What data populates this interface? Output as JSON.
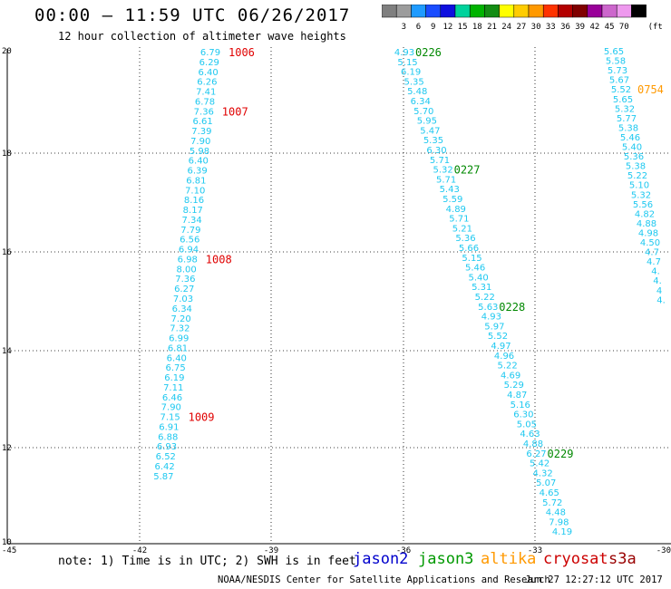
{
  "header": {
    "title": "00:00 – 11:59 UTC 06/26/2017",
    "subtitle": "12 hour collection of altimeter wave heights"
  },
  "color_scale": {
    "unit": "(ft)",
    "swatches": [
      {
        "label": "",
        "color": "#7f7f7f"
      },
      {
        "label": "3",
        "color": "#9c9c9c"
      },
      {
        "label": "6",
        "color": "#1f9bff"
      },
      {
        "label": "9",
        "color": "#1a4dff"
      },
      {
        "label": "12",
        "color": "#0f10df"
      },
      {
        "label": "15",
        "color": "#00d29c"
      },
      {
        "label": "18",
        "color": "#00b300"
      },
      {
        "label": "21",
        "color": "#138c13"
      },
      {
        "label": "24",
        "color": "#ffff00"
      },
      {
        "label": "27",
        "color": "#ffcc00"
      },
      {
        "label": "30",
        "color": "#ff9900"
      },
      {
        "label": "33",
        "color": "#ff3300"
      },
      {
        "label": "36",
        "color": "#b30000"
      },
      {
        "label": "39",
        "color": "#800000"
      },
      {
        "label": "42",
        "color": "#990099"
      },
      {
        "label": "45",
        "color": "#cc66cc"
      },
      {
        "label": "70",
        "color": "#ee99ee"
      },
      {
        "label": "",
        "color": "#000000"
      }
    ]
  },
  "axes": {
    "x_ticks": [
      "-45",
      "-42",
      "-39",
      "-36",
      "-33",
      "-30"
    ],
    "y_ticks": [
      "20",
      "18",
      "16",
      "14",
      "12",
      "10"
    ]
  },
  "tracks": [
    {
      "values": [
        "6.79",
        "6.29",
        "6.40",
        "6.26",
        "7.41",
        "6.78",
        "7.36",
        "6.61",
        "7.39",
        "7.90",
        "5.98",
        "6.40",
        "6.39",
        "6.81",
        "7.10",
        "8.16",
        "8.17",
        "7.34",
        "7.79",
        "6.56",
        "6.94",
        "6.98",
        "8.00",
        "7.36",
        "6.27",
        "7.03",
        "6.34",
        "7.20",
        "7.32",
        "6.99",
        "6.81",
        "6.40",
        "6.75",
        "6.19",
        "7.11",
        "6.46",
        "7.90",
        "7.15",
        "6.91",
        "6.88",
        "6.93",
        "6.52",
        "6.42",
        "5.87"
      ],
      "times": [
        {
          "label": "1006",
          "row": 0
        },
        {
          "label": "1007",
          "row": 6
        },
        {
          "label": "1008",
          "row": 21
        },
        {
          "label": "1009",
          "row": 37
        }
      ]
    },
    {
      "values": [
        "4.93",
        "5.15",
        "6.19",
        "5.35",
        "5.48",
        "6.34",
        "5.70",
        "5.95",
        "5.47",
        "5.35",
        "6.30",
        "5.71",
        "5.32",
        "5.71",
        "5.43",
        "5.59",
        "4.89",
        "5.71",
        "5.21",
        "5.36",
        "5.66",
        "5.15",
        "5.46",
        "5.40",
        "5.31",
        "5.22",
        "5.63",
        "4.93",
        "5.97",
        "5.52",
        "4.97",
        "4.96",
        "5.22",
        "4.69",
        "5.29",
        "4.87",
        "5.16",
        "6.30",
        "5.05",
        "4.63",
        "4.88",
        "6.27",
        "5.42",
        "4.32",
        "5.07",
        "4.65",
        "5.72",
        "4.48",
        "7.98",
        "4.19"
      ],
      "times": [
        {
          "label": "0226",
          "row": 0
        },
        {
          "label": "0227",
          "row": 12
        },
        {
          "label": "0228",
          "row": 26
        },
        {
          "label": "0229",
          "row": 41
        }
      ]
    },
    {
      "values": [
        "5.65",
        "5.58",
        "5.73",
        "5.67",
        "5.52",
        "5.65",
        "5.32",
        "5.77",
        "5.38",
        "5.46",
        "5.40",
        "5.36",
        "5.38",
        "5.22",
        "5.10",
        "5.32",
        "5.56",
        "4.82",
        "4.88",
        "4.98",
        "4.50",
        "4.7",
        "4.7",
        "4.",
        "4.",
        "4",
        "4."
      ],
      "times": [
        {
          "label": "0754",
          "row": 4
        }
      ]
    }
  ],
  "footer": {
    "note": "note: 1) Time is in UTC; 2) SWH is in feet",
    "legend": [
      {
        "label": "jason2",
        "color": "#0000cc"
      },
      {
        "label": "jason3",
        "color": "#009900"
      },
      {
        "label": "altika",
        "color": "#ff9900"
      },
      {
        "label": "cryosat",
        "color": "#cc0000"
      },
      {
        "label": "s3a",
        "color": "#990000"
      }
    ],
    "credit": "NOAA/NESDIS Center for Satellite Applications and Research",
    "timestamp": "Jun 27 12:27:12 UTC 2017"
  },
  "colors": {
    "value_text": "#1ec8f0",
    "cryosat_time": "#e00000",
    "jason3_time": "#008800",
    "altika_time": "#ff9900",
    "grid": "#000000"
  }
}
